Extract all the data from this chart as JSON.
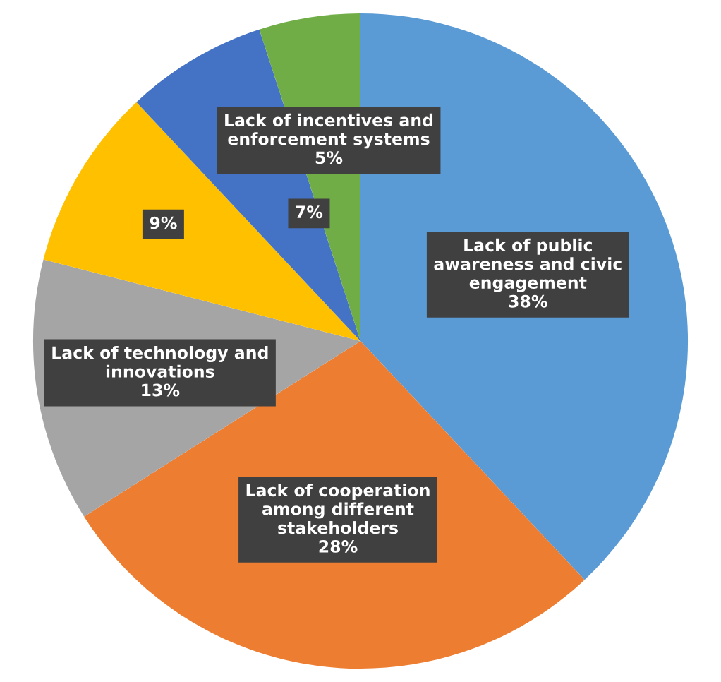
{
  "chart_data": {
    "type": "pie",
    "categories": [
      "Lack of public\nawareness and civic\nengagement",
      "Lack of cooperation\namong different\nstakeholders",
      "Lack of technology and\ninnovations",
      null,
      null,
      "Lack of incentives and\nenforcement systems"
    ],
    "values": [
      38,
      28,
      13,
      9,
      7,
      5
    ],
    "value_labels": [
      "38%",
      "28%",
      "13%",
      "9%",
      "7%",
      "5%"
    ],
    "colors": [
      "#5b9bd5",
      "#ed7d31",
      "#a5a5a5",
      "#ffc000",
      "#4472c4",
      "#70ad47"
    ],
    "legend": false
  }
}
